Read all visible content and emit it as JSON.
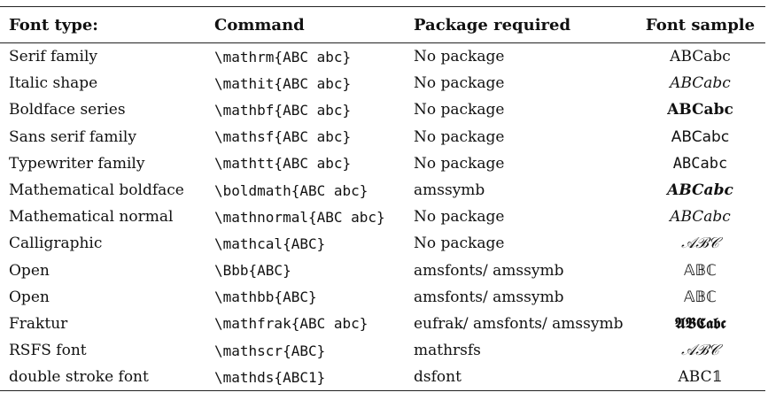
{
  "header": {
    "font_type": "Font type:",
    "command": "Command",
    "package": "Package required",
    "sample": "Font sample"
  },
  "rows": [
    {
      "type": "Serif family",
      "command": "\\mathrm{ABC abc}",
      "package": "No package",
      "sample": "ABCabc",
      "style": "sample-serif"
    },
    {
      "type": "Italic shape",
      "command": "\\mathit{ABC abc}",
      "package": "No package",
      "sample": "ABCabc",
      "style": "sample-italic"
    },
    {
      "type": "Boldface series",
      "command": "\\mathbf{ABC abc}",
      "package": "No package",
      "sample": "ABCabc",
      "style": "sample-bold"
    },
    {
      "type": "Sans serif family",
      "command": "\\mathsf{ABC abc}",
      "package": "No package",
      "sample": "ABCabc",
      "style": "sample-sans"
    },
    {
      "type": "Typewriter family",
      "command": "\\mathtt{ABC abc}",
      "package": "No package",
      "sample": "ABCabc",
      "style": "sample-mono"
    },
    {
      "type": "Mathematical boldface",
      "command": "\\boldmath{ABC abc}",
      "package": "amssymb",
      "sample": "ABCabc",
      "style": "sample-bolditalic"
    },
    {
      "type": "Mathematical normal",
      "command": "\\mathnormal{ABC abc}",
      "package": "No package",
      "sample": "ABCabc",
      "style": "sample-italic"
    },
    {
      "type": "Calligraphic",
      "command": "\\mathcal{ABC}",
      "package": "No package",
      "sample": "𝒜ℬ𝒞",
      "style": "sample-cal"
    },
    {
      "type": "Open",
      "command": "\\Bbb{ABC}",
      "package": "amsfonts/ amssymb",
      "sample": "𝔸𝔹ℂ",
      "style": "sample-open"
    },
    {
      "type": "Open",
      "command": "\\mathbb{ABC}",
      "package": "amsfonts/ amssymb",
      "sample": "𝔸𝔹ℂ",
      "style": "sample-open"
    },
    {
      "type": "Fraktur",
      "command": "\\mathfrak{ABC abc}",
      "package": "eufrak/ amsfonts/ amssymb",
      "sample": "𝕬𝕭𝕮𝖆𝖇𝖈",
      "style": "sample-frak"
    },
    {
      "type": "RSFS font",
      "command": "\\mathscr{ABC}",
      "package": "mathrsfs",
      "sample": "𝒜ℬ𝒞",
      "style": "sample-rsfs"
    },
    {
      "type": "double stroke font",
      "command": "\\mathds{ABC1}",
      "package": "dsfont",
      "sample": "ABC𝟙",
      "style": "sample-ds"
    }
  ]
}
